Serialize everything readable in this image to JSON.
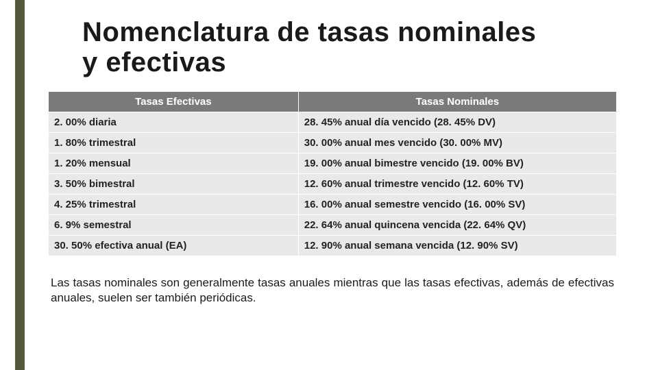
{
  "accent_color": "#535a3b",
  "title_line1": "Nomenclatura de tasas nominales",
  "title_line2": "y efectivas",
  "table": {
    "header_bg": "#7a7a7a",
    "header_fg": "#ffffff",
    "cell_bg": "#e9e9e9",
    "columns": [
      "Tasas Efectivas",
      "Tasas Nominales"
    ],
    "rows": [
      [
        "2. 00% diaria",
        "28. 45% anual día vencido (28. 45% DV)"
      ],
      [
        "1. 80% trimestral",
        "30. 00% anual mes vencido (30. 00% MV)"
      ],
      [
        "1. 20% mensual",
        "19. 00% anual bimestre vencido (19. 00% BV)"
      ],
      [
        "3. 50% bimestral",
        "12. 60% anual trimestre vencido (12. 60% TV)"
      ],
      [
        "4. 25% trimestral",
        "16. 00% anual semestre vencido (16. 00% SV)"
      ],
      [
        "6. 9% semestral",
        "22. 64% anual quincena vencida (22. 64% QV)"
      ],
      [
        "30. 50% efectiva anual (EA)",
        "12. 90% anual semana vencida (12. 90% SV)"
      ]
    ]
  },
  "footnote": "Las tasas nominales son generalmente  tasas anuales mientras que las tasas efectivas, además de efectivas anuales, suelen ser también periódicas."
}
